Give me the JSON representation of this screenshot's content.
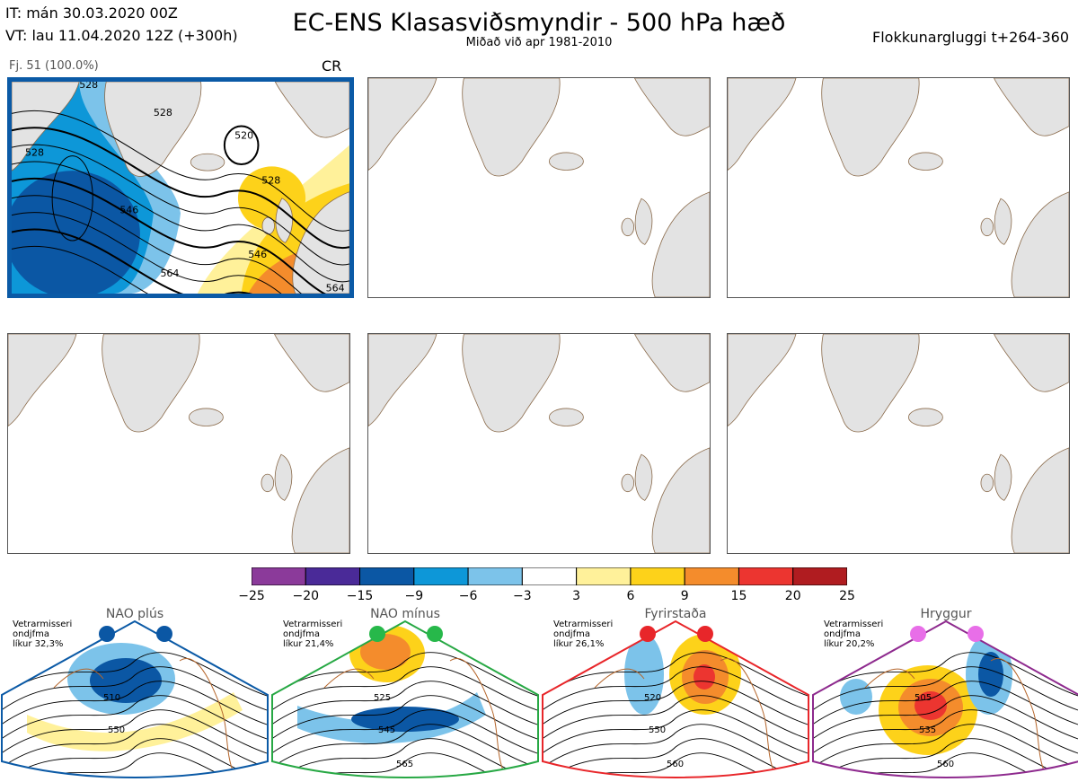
{
  "header": {
    "it_line": "IT: mán 30.03.2020 00Z",
    "vt_line": "VT: lau 11.04.2020 12Z  (+300h)",
    "title": "EC-ENS Klasasviðsmyndir - 500 hPa hæð",
    "subtitle": "Miðað við apr 1981-2010",
    "window": "Flokkunargluggi t+264-360"
  },
  "cluster": {
    "label": "Fj. 51 (100.0%)",
    "regime": "CR",
    "contour_labels": [
      "520",
      "528",
      "528",
      "528",
      "528",
      "546",
      "546",
      "564",
      "564"
    ]
  },
  "colors": {
    "cluster_border": "#0b5aa6",
    "land": "#e3e3e3",
    "coast": "#8a6a4a",
    "nao_plus": "#0b5aa6",
    "nao_minus": "#27a844",
    "blocking": "#e8262a",
    "ridge": "#8e2a8e"
  },
  "chart_data": {
    "type": "heatmap",
    "title": "EC-ENS Klasasviðsmyndir - 500 hPa hæð",
    "colorbar": {
      "ticks": [
        "−25",
        "−20",
        "−15",
        "−9",
        "−6",
        "−3",
        "3",
        "6",
        "9",
        "15",
        "20",
        "25"
      ],
      "bins": [
        {
          "from": -25,
          "to": -20,
          "color": "#8b3a9a"
        },
        {
          "from": -20,
          "to": -15,
          "color": "#4a2a98"
        },
        {
          "from": -15,
          "to": -9,
          "color": "#0b57a4"
        },
        {
          "from": -9,
          "to": -6,
          "color": "#0d97d8"
        },
        {
          "from": -6,
          "to": -3,
          "color": "#7cc3ea"
        },
        {
          "from": -3,
          "to": 3,
          "color": "#ffffff"
        },
        {
          "from": 3,
          "to": 6,
          "color": "#fff19a"
        },
        {
          "from": 6,
          "to": 9,
          "color": "#fdd21a"
        },
        {
          "from": 9,
          "to": 15,
          "color": "#f48c2c"
        },
        {
          "from": 15,
          "to": 20,
          "color": "#ec3530"
        },
        {
          "from": 20,
          "to": 25,
          "color": "#b01c20"
        }
      ]
    },
    "regimes": [
      {
        "name": "NAO plús",
        "desc": [
          "Vetrarmisseri",
          "ondjfma",
          "líkur 32,3%"
        ],
        "probability": 32.3,
        "contour_labels": [
          "510",
          "550"
        ]
      },
      {
        "name": "NAO mínus",
        "desc": [
          "Vetrarmisseri",
          "ondjfma",
          "líkur 21,4%"
        ],
        "probability": 21.4,
        "contour_labels": [
          "525",
          "545",
          "565"
        ]
      },
      {
        "name": "Fyrirstaða",
        "desc": [
          "Vetrarmisseri",
          "ondjfma",
          "líkur 26,1%"
        ],
        "probability": 26.1,
        "contour_labels": [
          "520",
          "550",
          "560"
        ]
      },
      {
        "name": "Hryggur",
        "desc": [
          "Vetrarmisseri",
          "ondjfma",
          "líkur 20,2%"
        ],
        "probability": 20.2,
        "contour_labels": [
          "505",
          "535",
          "560"
        ]
      }
    ]
  }
}
